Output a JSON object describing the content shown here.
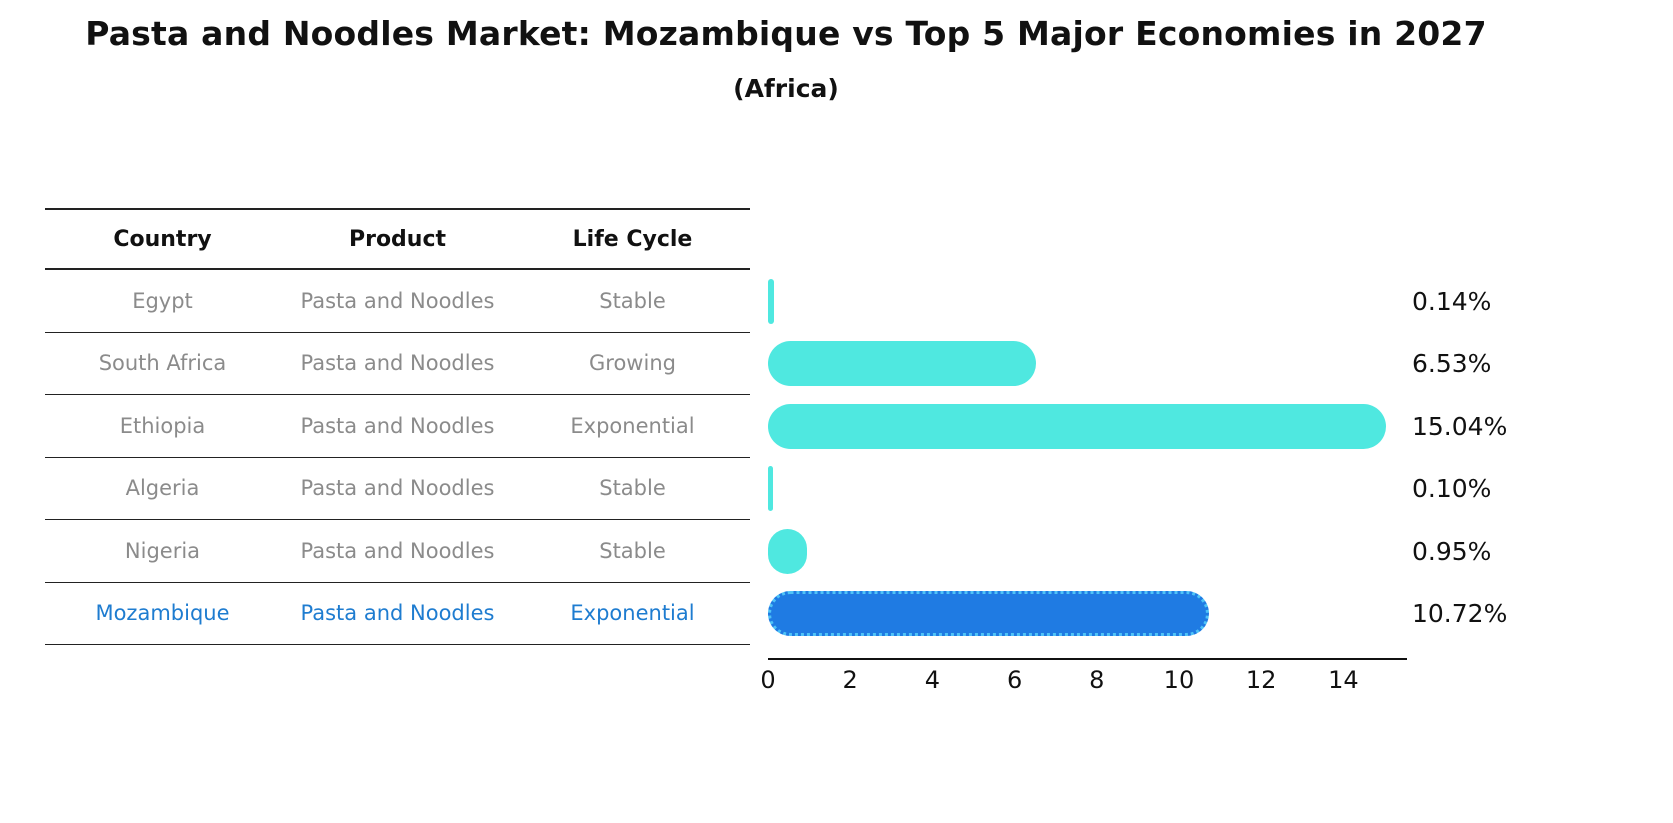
{
  "title": "Pasta and Noodles Market: Mozambique vs Top 5 Major Economies in 2027",
  "subtitle": "(Africa)",
  "table": {
    "headers": [
      "Country",
      "Product",
      "Life Cycle"
    ]
  },
  "chart_data": {
    "type": "bar",
    "orientation": "horizontal",
    "title": "Pasta and Noodles Market: Mozambique vs Top 5 Major Economies in 2027",
    "subtitle": "(Africa)",
    "categories": [
      "Egypt",
      "South Africa",
      "Ethiopia",
      "Algeria",
      "Nigeria",
      "Mozambique"
    ],
    "values": [
      0.14,
      6.53,
      15.04,
      0.1,
      0.95,
      10.72
    ],
    "rows": [
      {
        "country": "Egypt",
        "product": "Pasta and Noodles",
        "life_cycle": "Stable",
        "value": 0.14,
        "value_label": "0.14%",
        "highlight": false
      },
      {
        "country": "South Africa",
        "product": "Pasta and Noodles",
        "life_cycle": "Growing",
        "value": 6.53,
        "value_label": "6.53%",
        "highlight": false
      },
      {
        "country": "Ethiopia",
        "product": "Pasta and Noodles",
        "life_cycle": "Exponential",
        "value": 15.04,
        "value_label": "15.04%",
        "highlight": false
      },
      {
        "country": "Algeria",
        "product": "Pasta and Noodles",
        "life_cycle": "Stable",
        "value": 0.1,
        "value_label": "0.10%",
        "highlight": false
      },
      {
        "country": "Nigeria",
        "product": "Pasta and Noodles",
        "life_cycle": "Stable",
        "value": 0.95,
        "value_label": "0.95%",
        "highlight": false
      },
      {
        "country": "Mozambique",
        "product": "Pasta and Noodles",
        "life_cycle": "Exponential",
        "value": 10.72,
        "value_label": "10.72%",
        "highlight": true
      }
    ],
    "xlabel": "",
    "ylabel": "",
    "xlim": [
      0,
      15.5
    ],
    "xticks": [
      0,
      2,
      4,
      6,
      8,
      10,
      12,
      14
    ],
    "grid": false,
    "legend": "none",
    "bar_color": "#4FE8E0",
    "highlight_bar_color": "#1F7BE3",
    "highlight_border_color": "#4FC3F7",
    "highlight_text_color": "#1E7CD0"
  }
}
